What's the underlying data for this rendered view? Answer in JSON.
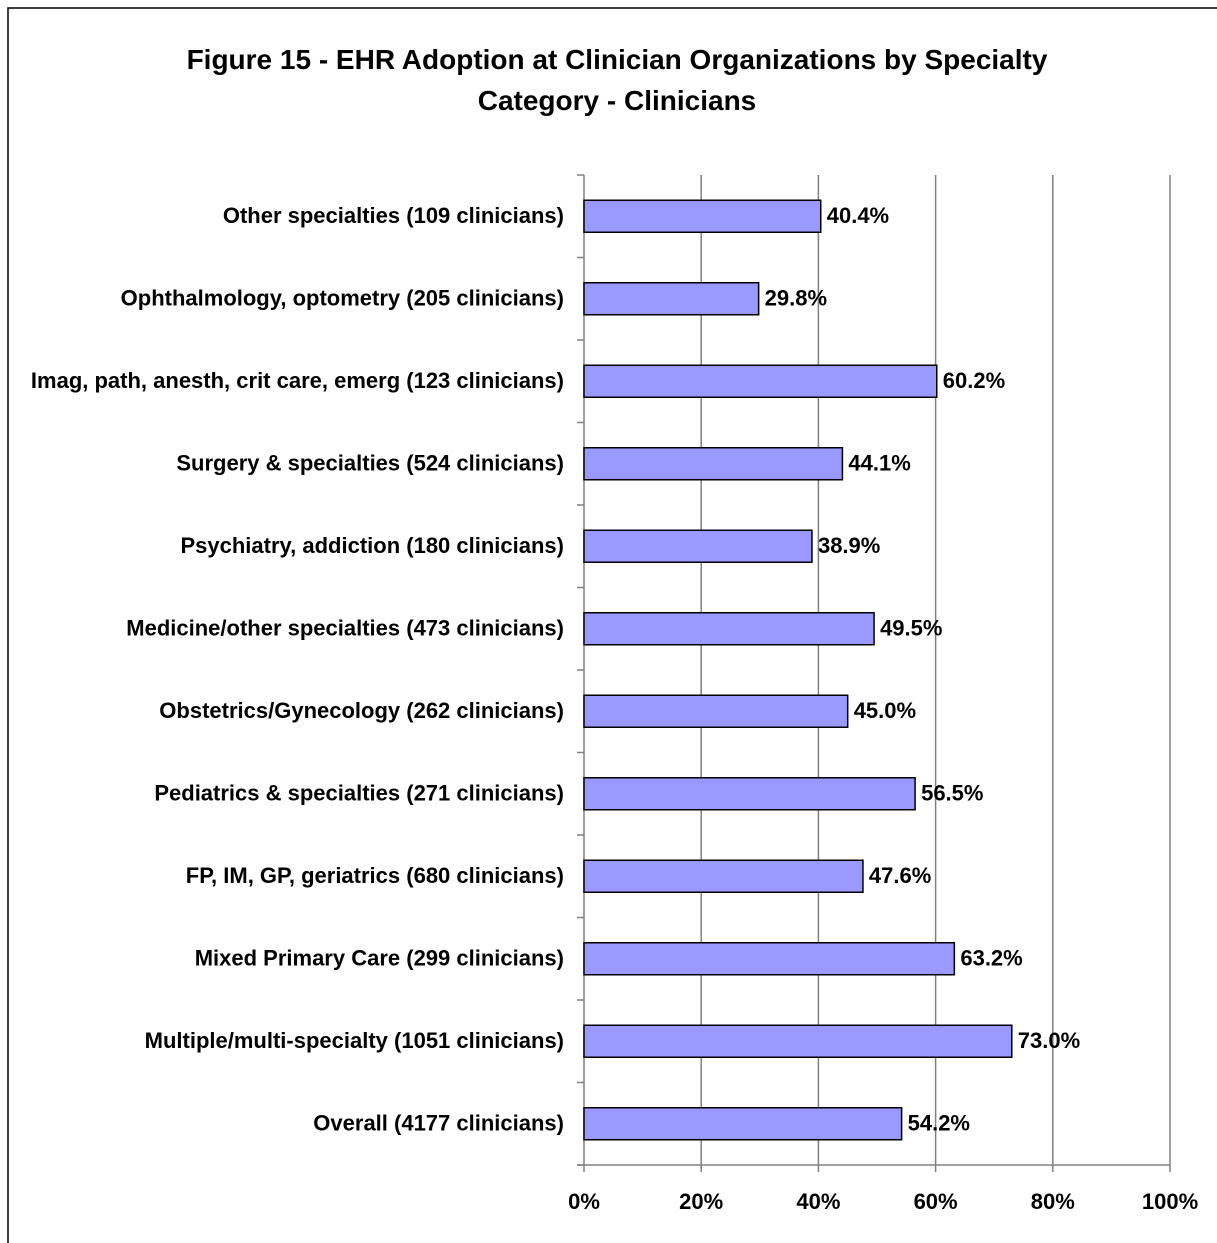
{
  "chart_data": {
    "type": "barh",
    "title": "Figure 15 - EHR Adoption at Clinician Organizations by Specialty Category - Clinicians",
    "categories": [
      "Other specialties (109 clinicians)",
      "Ophthalmology, optometry (205 clinicians)",
      "Imag, path, anesth, crit care, emerg (123 clinicians)",
      "Surgery & specialties (524 clinicians)",
      "Psychiatry, addiction (180 clinicians)",
      "Medicine/other specialties (473 clinicians)",
      "Obstetrics/Gynecology (262 clinicians)",
      "Pediatrics & specialties (271 clinicians)",
      "FP, IM, GP, geriatrics (680 clinicians)",
      "Mixed Primary Care (299 clinicians)",
      "Multiple/multi-specialty (1051 clinicians)",
      "Overall (4177 clinicians)"
    ],
    "values": [
      40.4,
      29.8,
      60.2,
      44.1,
      38.9,
      49.5,
      45.0,
      56.5,
      47.6,
      63.2,
      73.0,
      54.2
    ],
    "value_labels": [
      "40.4%",
      "29.8%",
      "60.2%",
      "44.1%",
      "38.9%",
      "49.5%",
      "45.0%",
      "56.5%",
      "47.6%",
      "63.2%",
      "73.0%",
      "54.2%"
    ],
    "color": "#9999ff",
    "xlim": [
      0,
      100
    ],
    "xticks": [
      {
        "value": 0,
        "label": "0%"
      },
      {
        "value": 20,
        "label": "20%"
      },
      {
        "value": 40,
        "label": "40%"
      },
      {
        "value": 60,
        "label": "60%"
      },
      {
        "value": 80,
        "label": "80%"
      },
      {
        "value": 100,
        "label": "100%"
      }
    ],
    "grid": true
  }
}
